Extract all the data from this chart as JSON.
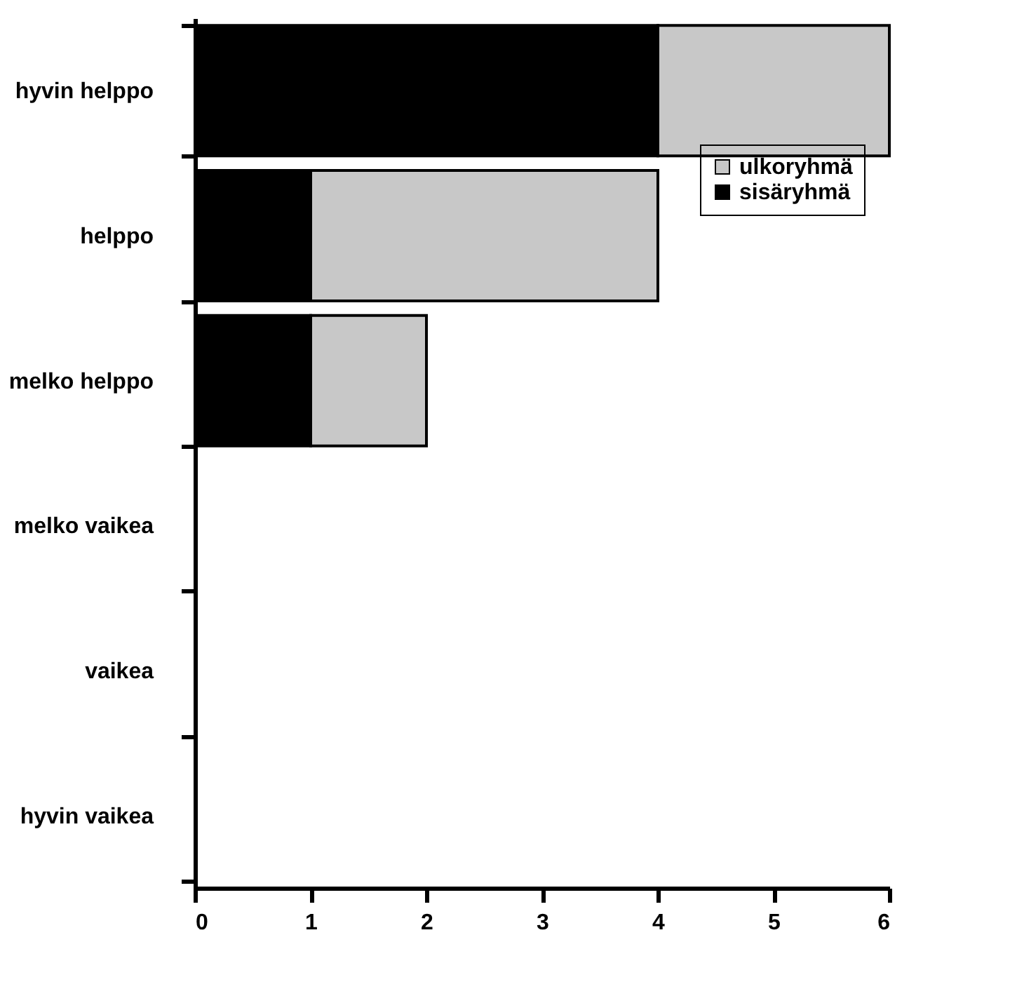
{
  "chart_data": {
    "type": "bar",
    "orientation": "horizontal",
    "stacked": true,
    "categories": [
      "hyvin helppo",
      "helppo",
      "melko helppo",
      "melko vaikea",
      "vaikea",
      "hyvin vaikea"
    ],
    "series": [
      {
        "name": "sisäryhmä",
        "color": "#000000",
        "values": [
          4,
          1,
          1,
          0,
          0,
          0
        ]
      },
      {
        "name": "ulkoryhmä",
        "color": "#c8c8c8",
        "values": [
          2,
          3,
          1,
          0,
          0,
          0
        ]
      }
    ],
    "xlim": [
      0,
      6
    ],
    "xticks": [
      0,
      1,
      2,
      3,
      4,
      5,
      6
    ],
    "grid": false,
    "legend": "top right"
  }
}
